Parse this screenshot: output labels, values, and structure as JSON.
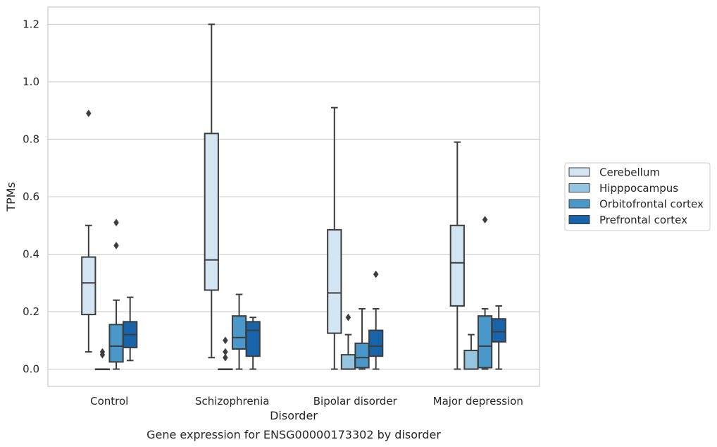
{
  "chart_data": {
    "type": "box",
    "title": "",
    "caption": "Gene expression for ENSG00000173302 by disorder",
    "xlabel": "Disorder",
    "ylabel": "TPMs",
    "ylim": [
      -0.06,
      1.26
    ],
    "yticks": [
      0.0,
      0.2,
      0.4,
      0.6,
      0.8,
      1.0,
      1.2
    ],
    "ytick_labels": [
      "0.0",
      "0.2",
      "0.4",
      "0.6",
      "0.8",
      "1.0",
      "1.2"
    ],
    "grid": "horizontal",
    "legend_position": "right",
    "categories": [
      "Control",
      "Schizophrenia",
      "Bipolar disorder",
      "Major depression"
    ],
    "series": [
      {
        "name": "Cerebellum",
        "color": "#d3e4f3",
        "boxes": [
          {
            "whislo": 0.06,
            "q1": 0.19,
            "med": 0.3,
            "q3": 0.39,
            "whishi": 0.5,
            "fliers": [
              0.89
            ]
          },
          {
            "whislo": 0.04,
            "q1": 0.275,
            "med": 0.38,
            "q3": 0.82,
            "whishi": 1.2,
            "fliers": []
          },
          {
            "whislo": 0.0,
            "q1": 0.125,
            "med": 0.265,
            "q3": 0.485,
            "whishi": 0.91,
            "fliers": []
          },
          {
            "whislo": 0.0,
            "q1": 0.22,
            "med": 0.37,
            "q3": 0.5,
            "whishi": 0.79,
            "fliers": []
          }
        ]
      },
      {
        "name": "Hipppocampus",
        "color": "#94c4df",
        "boxes": [
          {
            "whislo": 0.0,
            "q1": 0.0,
            "med": 0.0,
            "q3": 0.0,
            "whishi": 0.0,
            "fliers": [
              0.05,
              0.06
            ]
          },
          {
            "whislo": 0.0,
            "q1": 0.0,
            "med": 0.0,
            "q3": 0.0,
            "whishi": 0.0,
            "fliers": [
              0.04,
              0.06,
              0.1
            ]
          },
          {
            "whislo": 0.0,
            "q1": 0.0,
            "med": 0.0,
            "q3": 0.05,
            "whishi": 0.12,
            "fliers": [
              0.18
            ]
          },
          {
            "whislo": 0.0,
            "q1": 0.0,
            "med": 0.0,
            "q3": 0.065,
            "whishi": 0.12,
            "fliers": []
          }
        ]
      },
      {
        "name": "Orbitofrontal cortex",
        "color": "#4a98c9",
        "boxes": [
          {
            "whislo": 0.0,
            "q1": 0.025,
            "med": 0.08,
            "q3": 0.155,
            "whishi": 0.24,
            "fliers": [
              0.43,
              0.51
            ]
          },
          {
            "whislo": 0.0,
            "q1": 0.07,
            "med": 0.11,
            "q3": 0.185,
            "whishi": 0.26,
            "fliers": []
          },
          {
            "whislo": 0.0,
            "q1": 0.005,
            "med": 0.04,
            "q3": 0.09,
            "whishi": 0.21,
            "fliers": []
          },
          {
            "whislo": 0.0,
            "q1": 0.005,
            "med": 0.08,
            "q3": 0.185,
            "whishi": 0.21,
            "fliers": [
              0.52
            ]
          }
        ]
      },
      {
        "name": "Prefrontal cortex",
        "color": "#1764ab",
        "boxes": [
          {
            "whislo": 0.03,
            "q1": 0.075,
            "med": 0.12,
            "q3": 0.165,
            "whishi": 0.25,
            "fliers": []
          },
          {
            "whislo": 0.0,
            "q1": 0.045,
            "med": 0.135,
            "q3": 0.165,
            "whishi": 0.18,
            "fliers": []
          },
          {
            "whislo": 0.0,
            "q1": 0.045,
            "med": 0.08,
            "q3": 0.135,
            "whishi": 0.21,
            "fliers": [
              0.33
            ]
          },
          {
            "whislo": 0.0,
            "q1": 0.095,
            "med": 0.13,
            "q3": 0.175,
            "whishi": 0.22,
            "fliers": []
          }
        ]
      }
    ]
  }
}
